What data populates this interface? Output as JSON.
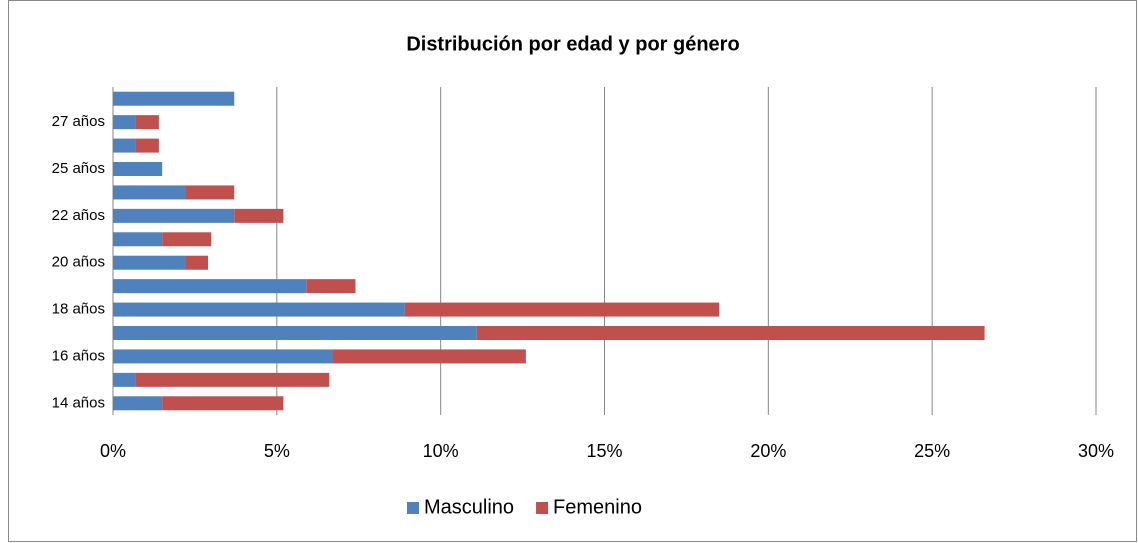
{
  "chart_data": {
    "type": "stacked-barh",
    "title": "Distribución por edad y por género",
    "categories": [
      "14 años",
      null,
      "16 años",
      null,
      "18 años",
      null,
      "20 años",
      null,
      "22 años",
      null,
      "25 años",
      null,
      "27 años",
      null
    ],
    "series": [
      {
        "name": "Masculino",
        "color": "#4f81bd",
        "values": [
          1.5,
          0.7,
          6.7,
          11.1,
          8.9,
          5.9,
          2.2,
          1.5,
          3.7,
          2.2,
          1.5,
          0.7,
          0.7,
          3.7
        ]
      },
      {
        "name": "Femenino",
        "color": "#c0504d",
        "values": [
          3.7,
          5.9,
          5.9,
          15.5,
          9.6,
          1.5,
          0.7,
          1.5,
          1.5,
          1.5,
          0,
          0.7,
          0.7,
          0
        ]
      }
    ],
    "xlim": [
      0,
      30
    ],
    "xticks": [
      {
        "value": 0,
        "label": "0%"
      },
      {
        "value": 5,
        "label": "5%"
      },
      {
        "value": 10,
        "label": "10%"
      },
      {
        "value": 15,
        "label": "15%"
      },
      {
        "value": 20,
        "label": "20%"
      },
      {
        "value": 25,
        "label": "25%"
      },
      {
        "value": 30,
        "label": "30%"
      }
    ],
    "grid": true,
    "legend": "bottom"
  }
}
